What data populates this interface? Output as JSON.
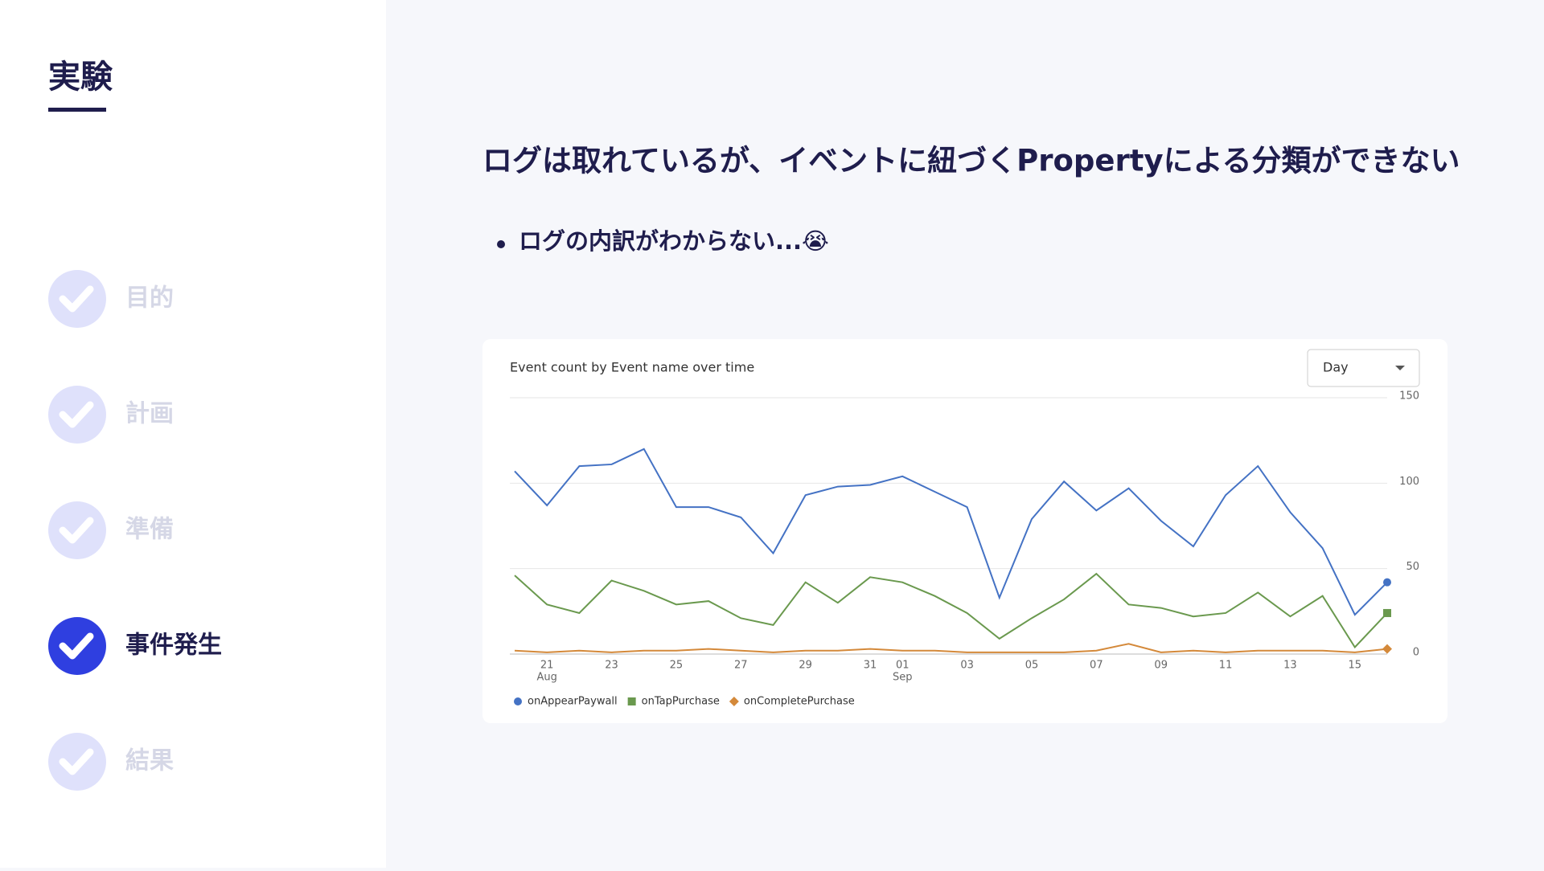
{
  "sidebar": {
    "title": "実験",
    "steps": [
      "目的",
      "計画",
      "準備",
      "事件発生",
      "結果"
    ],
    "active_step": 3
  },
  "heading": "ログは取れているが、イベントに紐づくPropertyによる分類ができない",
  "bullets": [
    "ログの内訳がわからない...😭"
  ],
  "chart_data": {
    "type": "line",
    "title": "Event count by Event name over time",
    "dropdown": "Day",
    "categories": [
      null,
      "21",
      null,
      "23",
      null,
      "25",
      null,
      "27",
      null,
      "29",
      null,
      "31",
      "01",
      null,
      "03",
      null,
      "05",
      null,
      "07",
      null,
      "09",
      null,
      "11",
      null,
      "13",
      null,
      "15",
      null
    ],
    "x_sublabels": [
      null,
      "Aug",
      null,
      null,
      null,
      null,
      null,
      null,
      null,
      null,
      null,
      null,
      "Sep",
      null,
      null,
      null,
      null,
      null,
      null,
      null,
      null,
      null,
      null,
      null,
      null,
      null,
      null,
      null
    ],
    "series": [
      {
        "name": "onAppearPaywall",
        "color": "#4472c4",
        "marker": "circle",
        "values": [
          107,
          87,
          110,
          111,
          120,
          86,
          86,
          80,
          59,
          93,
          98,
          99,
          104,
          95,
          86,
          33,
          79,
          101,
          84,
          97,
          78,
          63,
          93,
          110,
          83,
          62,
          23,
          42
        ]
      },
      {
        "name": "onTapPurchase",
        "color": "#6a994e",
        "marker": "square",
        "values": [
          46,
          29,
          24,
          43,
          37,
          29,
          31,
          21,
          17,
          42,
          30,
          45,
          42,
          34,
          24,
          9,
          21,
          32,
          47,
          29,
          27,
          22,
          24,
          36,
          22,
          34,
          4,
          24
        ]
      },
      {
        "name": "onCompletePurchase",
        "color": "#d4893a",
        "marker": "diamond",
        "values": [
          2,
          1,
          2,
          1,
          2,
          2,
          3,
          2,
          1,
          2,
          2,
          3,
          2,
          2,
          1,
          1,
          1,
          1,
          2,
          6,
          1,
          2,
          1,
          2,
          2,
          2,
          1,
          3
        ]
      }
    ],
    "ylim": [
      0,
      150
    ],
    "yticks": [
      0,
      50,
      100,
      150
    ],
    "grid": true,
    "legend": "bottom"
  }
}
